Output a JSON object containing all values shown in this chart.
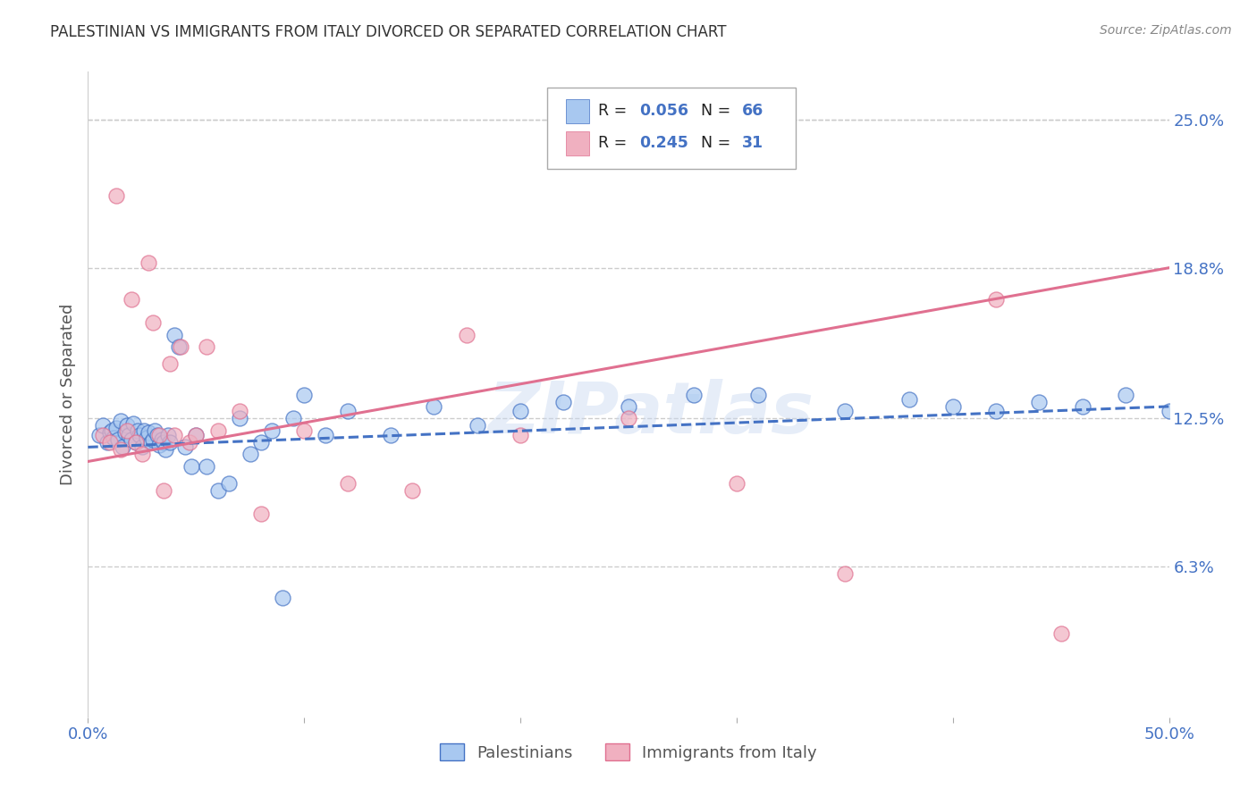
{
  "title": "PALESTINIAN VS IMMIGRANTS FROM ITALY DIVORCED OR SEPARATED CORRELATION CHART",
  "source": "Source: ZipAtlas.com",
  "ylabel": "Divorced or Separated",
  "xlim": [
    0.0,
    0.5
  ],
  "ylim": [
    0.0,
    0.27
  ],
  "ytick_labels_right": [
    "25.0%",
    "18.8%",
    "12.5%",
    "6.3%"
  ],
  "ytick_values_right": [
    0.25,
    0.188,
    0.125,
    0.063
  ],
  "legend_r1": "0.056",
  "legend_n1": "66",
  "legend_r2": "0.245",
  "legend_n2": "31",
  "color_blue": "#A8C8F0",
  "color_pink": "#F0B0C0",
  "color_blue_text": "#4472C4",
  "color_pink_line": "#E07090",
  "watermark": "ZIPatlas",
  "palestinians_x": [
    0.005,
    0.007,
    0.009,
    0.01,
    0.011,
    0.012,
    0.013,
    0.014,
    0.015,
    0.016,
    0.017,
    0.018,
    0.019,
    0.02,
    0.021,
    0.022,
    0.023,
    0.024,
    0.025,
    0.026,
    0.027,
    0.028,
    0.029,
    0.03,
    0.031,
    0.032,
    0.033,
    0.034,
    0.035,
    0.036,
    0.037,
    0.038,
    0.04,
    0.042,
    0.045,
    0.048,
    0.05,
    0.055,
    0.06,
    0.065,
    0.07,
    0.075,
    0.08,
    0.085,
    0.09,
    0.095,
    0.1,
    0.11,
    0.12,
    0.14,
    0.16,
    0.18,
    0.2,
    0.22,
    0.25,
    0.28,
    0.31,
    0.35,
    0.38,
    0.4,
    0.42,
    0.44,
    0.46,
    0.48,
    0.5,
    0.52
  ],
  "palestinians_y": [
    0.118,
    0.122,
    0.115,
    0.119,
    0.12,
    0.117,
    0.121,
    0.116,
    0.124,
    0.113,
    0.119,
    0.122,
    0.118,
    0.116,
    0.123,
    0.115,
    0.12,
    0.118,
    0.113,
    0.12,
    0.117,
    0.119,
    0.115,
    0.116,
    0.12,
    0.118,
    0.114,
    0.116,
    0.115,
    0.112,
    0.118,
    0.115,
    0.16,
    0.155,
    0.113,
    0.105,
    0.118,
    0.105,
    0.095,
    0.098,
    0.125,
    0.11,
    0.115,
    0.12,
    0.05,
    0.125,
    0.135,
    0.118,
    0.128,
    0.118,
    0.13,
    0.122,
    0.128,
    0.132,
    0.13,
    0.135,
    0.135,
    0.128,
    0.133,
    0.13,
    0.128,
    0.132,
    0.13,
    0.135,
    0.128,
    0.13
  ],
  "italy_x": [
    0.007,
    0.01,
    0.013,
    0.015,
    0.018,
    0.02,
    0.022,
    0.025,
    0.028,
    0.03,
    0.033,
    0.035,
    0.038,
    0.04,
    0.043,
    0.047,
    0.05,
    0.055,
    0.06,
    0.07,
    0.08,
    0.1,
    0.12,
    0.15,
    0.175,
    0.2,
    0.25,
    0.3,
    0.35,
    0.42,
    0.45
  ],
  "italy_y": [
    0.118,
    0.115,
    0.218,
    0.112,
    0.12,
    0.175,
    0.115,
    0.11,
    0.19,
    0.165,
    0.118,
    0.095,
    0.148,
    0.118,
    0.155,
    0.115,
    0.118,
    0.155,
    0.12,
    0.128,
    0.085,
    0.12,
    0.098,
    0.095,
    0.16,
    0.118,
    0.125,
    0.098,
    0.06,
    0.175,
    0.035
  ],
  "blue_line_x": [
    0.0,
    0.5
  ],
  "blue_line_y": [
    0.113,
    0.13
  ],
  "pink_line_x": [
    0.0,
    0.5
  ],
  "pink_line_y": [
    0.107,
    0.188
  ],
  "background_color": "#FFFFFF",
  "grid_color": "#CCCCCC"
}
